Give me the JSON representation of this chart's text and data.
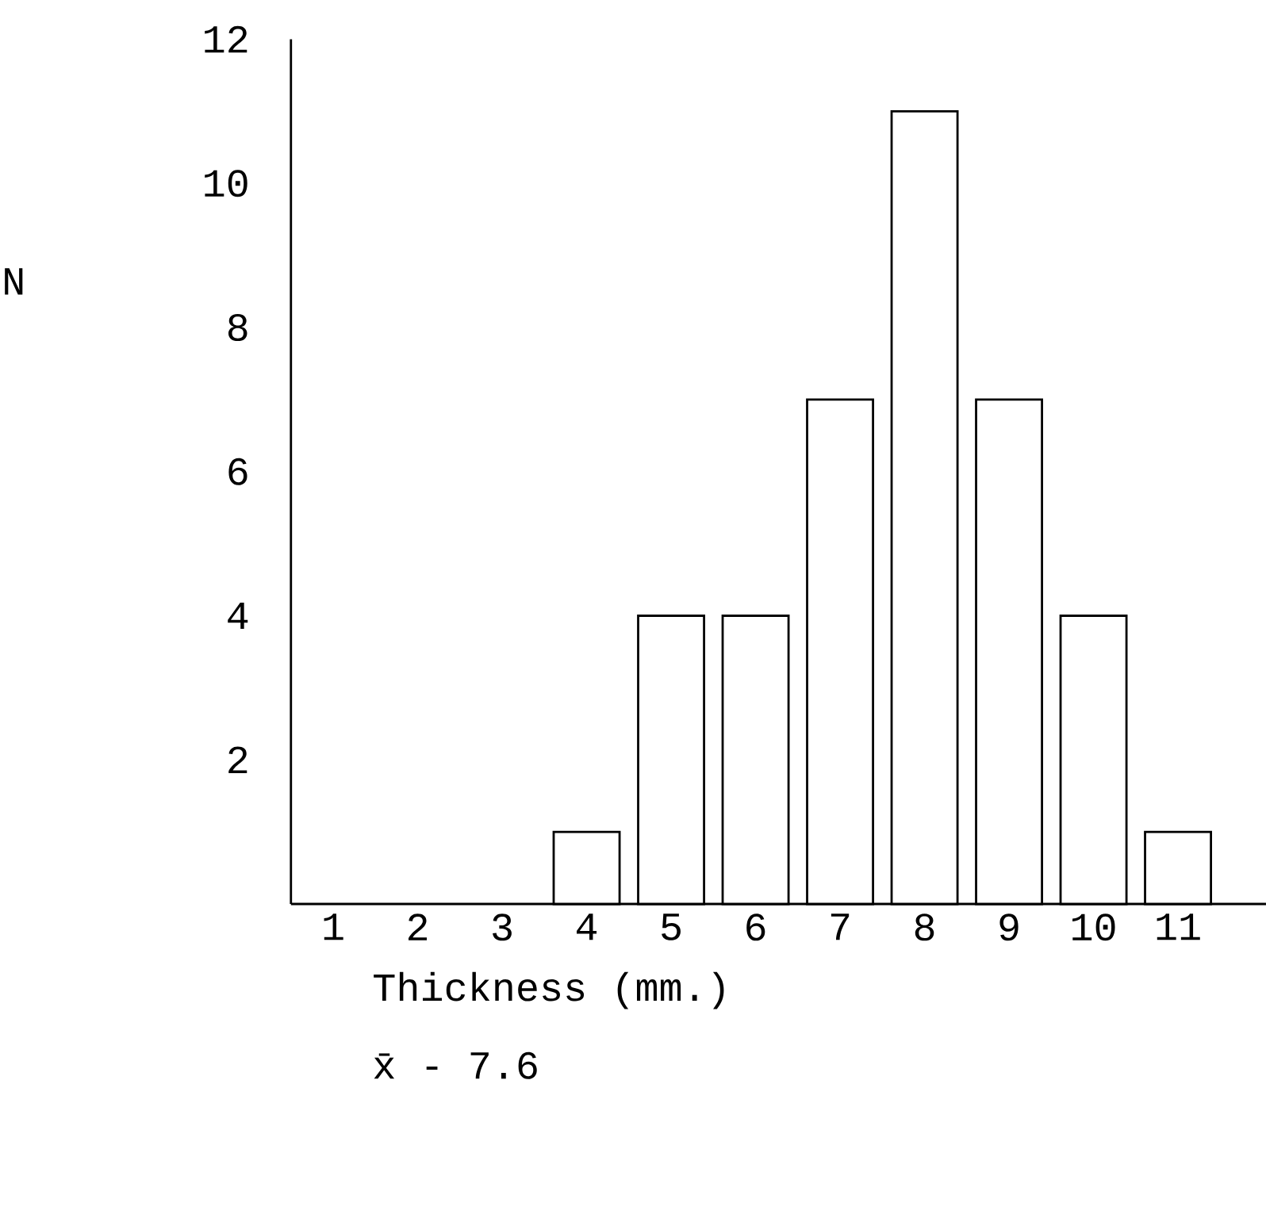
{
  "chart_data": {
    "type": "bar",
    "xlabel": "Thickness (mm.)",
    "ylabel": "N",
    "categories": [
      "1",
      "2",
      "3",
      "4",
      "5",
      "6",
      "7",
      "8",
      "9",
      "10",
      "11"
    ],
    "values": [
      null,
      null,
      null,
      1,
      4,
      4,
      7,
      11,
      7,
      4,
      1
    ],
    "color": "#ffffff",
    "ylim": [
      0,
      12
    ],
    "yticks": [
      2,
      4,
      6,
      8,
      10,
      12
    ],
    "annotations": [
      "x̄ - 7.6"
    ]
  }
}
